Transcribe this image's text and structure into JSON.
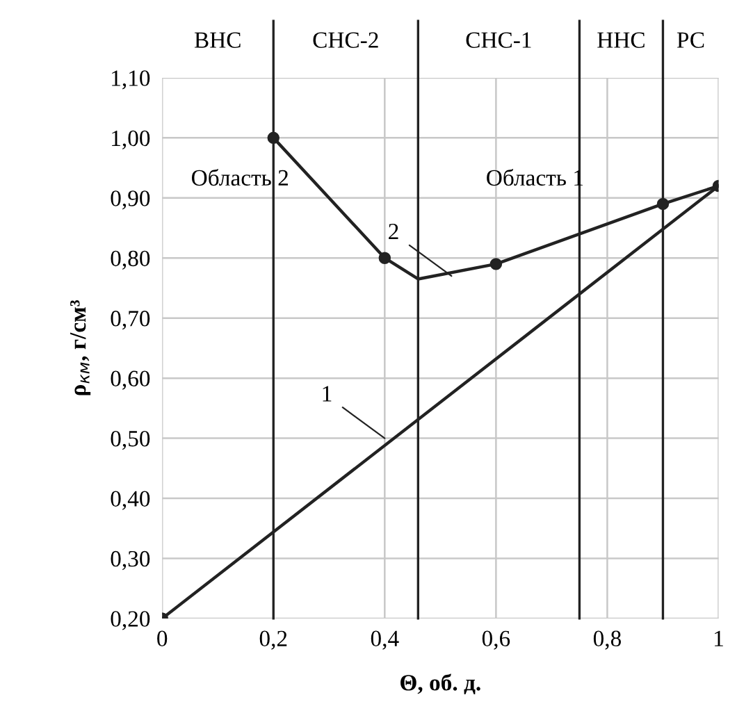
{
  "chart_data": {
    "type": "line",
    "xlabel": "Θ, об. д.",
    "ylabel": "ρ$_{км}$, г/см³",
    "series": [
      {
        "color": "#222222",
        "x": [
          0,
          1
        ],
        "values": [
          0.2,
          0.92
        ]
      },
      {
        "color": "#222222",
        "x": [
          0.2,
          0.4,
          0.46,
          0.6,
          0.9,
          1
        ],
        "values": [
          1.0,
          0.8,
          0.765,
          0.79,
          0.89,
          0.92
        ]
      },
      {
        "type": "scatter",
        "color": "#222222",
        "marker": "circle",
        "x": [
          0,
          0.2,
          0.4,
          0.6,
          0.9,
          1
        ],
        "values": [
          0.2,
          1.0,
          0.8,
          0.79,
          0.89,
          0.92
        ]
      }
    ],
    "xlim": [
      0,
      1
    ],
    "ylim": [
      0.2,
      1.1
    ],
    "xticks": [
      0,
      {
        "value": 0.2,
        "label": "0,2"
      },
      {
        "value": 0.4,
        "label": "0,4"
      },
      {
        "value": 0.6,
        "label": "0,6"
      },
      {
        "value": 0.8,
        "label": "0,8"
      },
      1
    ],
    "yticks": [
      {
        "value": 0.2,
        "label": "0,20"
      },
      {
        "value": 0.3,
        "label": "0,30"
      },
      {
        "value": 0.4,
        "label": "0,40"
      },
      {
        "value": 0.5,
        "label": "0,50"
      },
      {
        "value": 0.6,
        "label": "0,60"
      },
      {
        "value": 0.7,
        "label": "0,70"
      },
      {
        "value": 0.8,
        "label": "0,80"
      },
      {
        "value": 0.9,
        "label": "0,90"
      },
      {
        "value": 1.0,
        "label": "1,00"
      },
      {
        "value": 1.1,
        "label": "1,10"
      }
    ],
    "grid": true,
    "ref_lines": [
      {
        "axis": "x",
        "value": 0.2,
        "color": "#222222"
      },
      {
        "axis": "x",
        "value": 0.46,
        "color": "#222222"
      },
      {
        "axis": "x",
        "value": 0.75,
        "color": "#222222"
      },
      {
        "axis": "x",
        "value": 0.9,
        "color": "#222222"
      }
    ],
    "annotations": [
      "ВНС",
      "СНС-2",
      "СНС-1",
      "ННС",
      "РС",
      "Область 2",
      "Область 1",
      {
        "text": "1",
        "x": 0.4,
        "y": 0.5
      },
      {
        "text": "2",
        "x": 0.52,
        "y": 0.77
      }
    ]
  }
}
